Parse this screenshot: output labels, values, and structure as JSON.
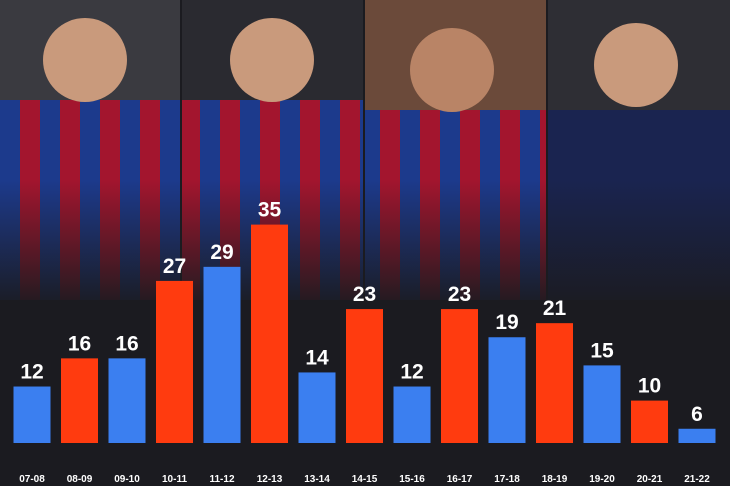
{
  "chart_data": {
    "type": "bar",
    "categories": [
      "07-08",
      "08-09",
      "09-10",
      "10-11",
      "11-12",
      "12-13",
      "13-14",
      "14-15",
      "15-16",
      "16-17",
      "17-18",
      "18-19",
      "19-20",
      "20-21",
      "21-22"
    ],
    "values": [
      12,
      16,
      16,
      27,
      29,
      35,
      14,
      23,
      12,
      23,
      19,
      21,
      15,
      10,
      6
    ],
    "colors": [
      "#3b7ff0",
      "#ff3b0f",
      "#3b7ff0",
      "#ff3b0f",
      "#3b7ff0",
      "#ff3b0f",
      "#3b7ff0",
      "#ff3b0f",
      "#3b7ff0",
      "#ff3b0f",
      "#3b7ff0",
      "#ff3b0f",
      "#3b7ff0",
      "#ff3b0f",
      "#3b7ff0"
    ]
  }
}
